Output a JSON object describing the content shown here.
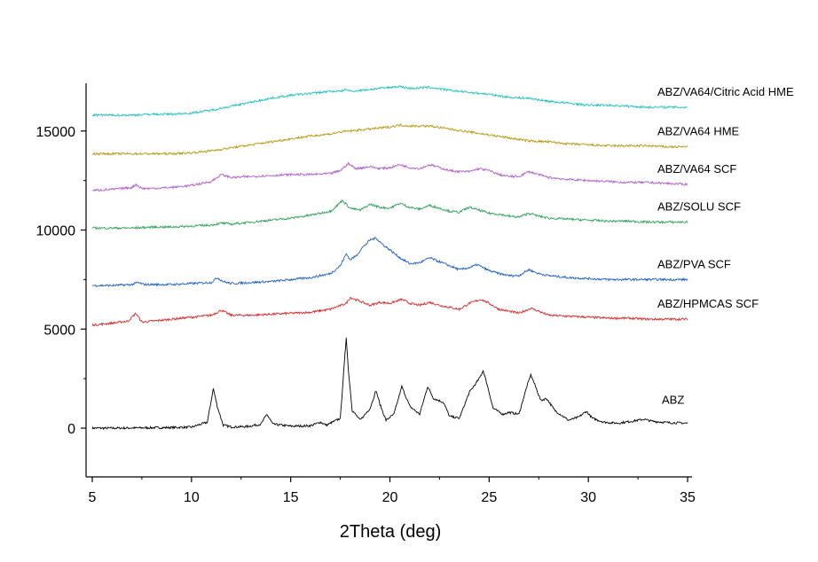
{
  "chart_data": {
    "type": "line",
    "xlabel": "2Theta (deg)",
    "ylabel": "",
    "xlim": [
      5,
      35
    ],
    "ylim": [
      -2500,
      17500
    ],
    "x_ticks": [
      5,
      10,
      15,
      20,
      25,
      30,
      35
    ],
    "y_ticks": [
      0,
      5000,
      10000,
      15000
    ],
    "x_tick_labels": [
      "5",
      "10",
      "15",
      "20",
      "25",
      "30",
      "35"
    ],
    "y_tick_labels": [
      "0",
      "5000",
      "10000",
      "15000"
    ],
    "grid": false,
    "legend": "inline labels at right end of each trace",
    "series": [
      {
        "name": "ABZ",
        "color": "#000000",
        "x": [
          5,
          6,
          7,
          8,
          9,
          10,
          10.8,
          11.1,
          11.3,
          11.6,
          12,
          12.8,
          13.5,
          13.8,
          14.1,
          15,
          16,
          16.5,
          16.8,
          17.5,
          17.8,
          17.9,
          18.1,
          18.5,
          19,
          19.3,
          19.5,
          19.8,
          20.2,
          20.6,
          21,
          21.5,
          21.9,
          22.2,
          22.7,
          23,
          23.5,
          24,
          24.5,
          24.7,
          24.9,
          25.2,
          25.7,
          26,
          26.5,
          26.9,
          27.1,
          27.3,
          27.6,
          27.9,
          28.3,
          29,
          29.5,
          29.9,
          30.2,
          30.8,
          31.5,
          32.2,
          32.8,
          33.2,
          34,
          35
        ],
        "values": [
          0,
          0,
          10,
          20,
          30,
          50,
          300,
          2000,
          1100,
          150,
          60,
          80,
          200,
          700,
          200,
          100,
          120,
          300,
          150,
          500,
          4600,
          3000,
          900,
          400,
          1000,
          1900,
          1200,
          400,
          700,
          2100,
          1100,
          700,
          2100,
          1500,
          1300,
          600,
          500,
          1800,
          2500,
          2900,
          2200,
          1000,
          700,
          800,
          700,
          2100,
          2700,
          2200,
          1400,
          1500,
          900,
          400,
          550,
          850,
          500,
          300,
          250,
          350,
          450,
          350,
          280,
          250
        ]
      },
      {
        "name": "ABZ/HPMCAS SCF",
        "color": "#d62728",
        "x": [
          5,
          6,
          6.8,
          7.2,
          7.5,
          8,
          9,
          10,
          11,
          11.5,
          12,
          13,
          14,
          15,
          16,
          17,
          17.8,
          18,
          18.5,
          19,
          19.5,
          20,
          20.6,
          21,
          21.5,
          22,
          22.5,
          23,
          23.5,
          24,
          24.6,
          25,
          25.5,
          26,
          26.5,
          27.1,
          27.5,
          28,
          29,
          30,
          31,
          32,
          33,
          34,
          35
        ],
        "values": [
          5200,
          5300,
          5400,
          5800,
          5350,
          5400,
          5500,
          5600,
          5700,
          5950,
          5700,
          5700,
          5750,
          5800,
          5850,
          6000,
          6300,
          6600,
          6400,
          6200,
          6350,
          6300,
          6500,
          6300,
          6200,
          6350,
          6200,
          6100,
          6000,
          6300,
          6500,
          6300,
          6000,
          5900,
          5800,
          6050,
          5900,
          5700,
          5650,
          5600,
          5550,
          5550,
          5500,
          5500,
          5500
        ]
      },
      {
        "name": "ABZ/PVA SCF",
        "color": "#1f5fbf",
        "x": [
          5,
          6,
          7,
          7.3,
          7.6,
          8,
          9,
          10,
          11,
          11.3,
          11.6,
          12,
          13,
          14,
          15,
          16,
          17,
          17.5,
          17.8,
          18,
          18.3,
          18.6,
          19,
          19.3,
          19.6,
          20,
          20.5,
          21,
          21.5,
          22,
          22.5,
          23,
          23.5,
          24,
          24.4,
          25,
          25.5,
          26,
          26.5,
          27,
          27.5,
          28,
          29,
          30,
          31,
          32,
          33,
          34,
          35
        ],
        "values": [
          7200,
          7200,
          7250,
          7350,
          7250,
          7250,
          7250,
          7300,
          7350,
          7600,
          7400,
          7300,
          7350,
          7400,
          7500,
          7600,
          7800,
          8200,
          8800,
          8500,
          8700,
          9100,
          9500,
          9600,
          9300,
          9000,
          8600,
          8300,
          8350,
          8600,
          8400,
          8200,
          8000,
          8100,
          8250,
          7950,
          7800,
          7700,
          7700,
          8000,
          7800,
          7700,
          7600,
          7550,
          7500,
          7500,
          7500,
          7500,
          7500
        ]
      },
      {
        "name": "ABZ/SOLU SCF",
        "color": "#2ca05a",
        "x": [
          5,
          6,
          7,
          8,
          9,
          10,
          11,
          11.5,
          12,
          13,
          14,
          15,
          16,
          17,
          17.3,
          17.6,
          18,
          18.5,
          19,
          19.5,
          20,
          20.5,
          21,
          21.5,
          22,
          22.5,
          23,
          23.5,
          24,
          24.5,
          25,
          25.5,
          26,
          26.5,
          27,
          27.5,
          28,
          29,
          30,
          31,
          32,
          33,
          34,
          35
        ],
        "values": [
          10100,
          10100,
          10100,
          10150,
          10150,
          10200,
          10250,
          10350,
          10300,
          10400,
          10500,
          10600,
          10750,
          10950,
          11200,
          11500,
          11100,
          11000,
          11300,
          11150,
          11100,
          11350,
          11150,
          11050,
          11250,
          11100,
          10950,
          10900,
          11150,
          11000,
          10850,
          10800,
          10700,
          10650,
          10850,
          10700,
          10600,
          10550,
          10500,
          10450,
          10450,
          10400,
          10400,
          10400
        ]
      },
      {
        "name": "ABZ/VA64 SCF",
        "color": "#b060c8",
        "x": [
          5,
          6,
          7,
          7.2,
          7.5,
          8,
          9,
          10,
          11,
          11.5,
          12,
          13,
          14,
          15,
          16,
          17,
          17.5,
          17.9,
          18.3,
          19,
          19.5,
          20,
          20.5,
          21,
          21.5,
          22,
          22.5,
          23,
          23.5,
          24,
          24.5,
          25,
          25.5,
          26,
          26.5,
          27,
          27.5,
          28,
          29,
          30,
          31,
          32,
          33,
          34,
          35
        ],
        "values": [
          12000,
          12050,
          12150,
          12300,
          12100,
          12100,
          12150,
          12250,
          12450,
          12800,
          12650,
          12700,
          12750,
          12800,
          12800,
          12850,
          13000,
          13350,
          13100,
          13200,
          13100,
          13150,
          13300,
          13150,
          13100,
          13300,
          13150,
          13000,
          12950,
          12950,
          13100,
          13000,
          12800,
          12700,
          12700,
          12950,
          12800,
          12650,
          12550,
          12500,
          12450,
          12400,
          12400,
          12350,
          12300
        ]
      },
      {
        "name": "ABZ/VA64 HME",
        "color": "#b8960c",
        "x": [
          5,
          6,
          7,
          8,
          9,
          10,
          11,
          12,
          13,
          14,
          15,
          16,
          17,
          17.5,
          18,
          19,
          20,
          20.5,
          21,
          22,
          23,
          24,
          25,
          26,
          27,
          28,
          29,
          30,
          31,
          32,
          33,
          34,
          35
        ],
        "values": [
          13850,
          13850,
          13850,
          13850,
          13850,
          13900,
          14000,
          14150,
          14300,
          14450,
          14600,
          14750,
          14850,
          14950,
          15000,
          15100,
          15200,
          15300,
          15250,
          15250,
          15100,
          14950,
          14800,
          14650,
          14500,
          14450,
          14350,
          14300,
          14250,
          14250,
          14250,
          14200,
          14200
        ]
      },
      {
        "name": "ABZ/VA64/Citric Acid HME",
        "color": "#1fbfbf",
        "x": [
          5,
          6,
          7,
          8,
          9,
          10,
          11,
          12,
          13,
          14,
          15,
          16,
          17,
          17.5,
          17.8,
          18,
          19,
          20,
          20.5,
          21,
          22,
          23,
          24,
          25,
          26,
          27,
          28,
          29,
          30,
          31,
          32,
          33,
          34,
          35
        ],
        "values": [
          15800,
          15800,
          15800,
          15850,
          15850,
          15900,
          16050,
          16250,
          16450,
          16650,
          16800,
          16900,
          17000,
          17000,
          17100,
          17000,
          17100,
          17200,
          17250,
          17150,
          17200,
          17050,
          16950,
          16850,
          16700,
          16650,
          16500,
          16400,
          16300,
          16300,
          16250,
          16200,
          16200,
          16200
        ]
      }
    ]
  }
}
